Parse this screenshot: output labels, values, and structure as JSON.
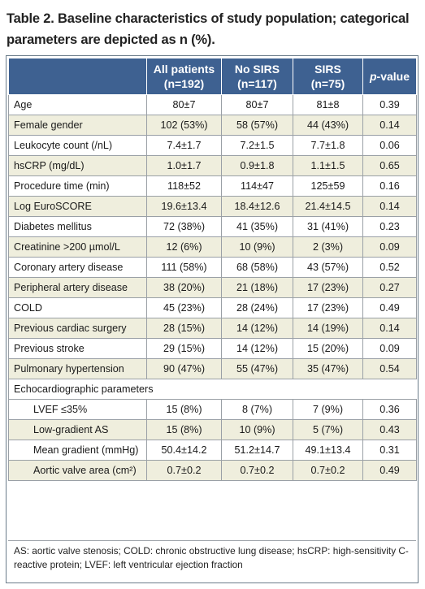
{
  "caption": "Table 2. Baseline characteristics of study population; categorical parameters are depicted as n (%).",
  "columns": {
    "all_line1": "All patients",
    "all_line2": "(n=192)",
    "nosirs_line1": "No SIRS",
    "nosirs_line2": "(n=117)",
    "sirs_line1": "SIRS",
    "sirs_line2": "(n=75)",
    "p_italic": "p",
    "p_rest": "-value"
  },
  "rows": [
    {
      "label": "Age",
      "all": "80±7",
      "nosirs": "80±7",
      "sirs": "81±8",
      "p": "0.39"
    },
    {
      "label": "Female gender",
      "all": "102 (53%)",
      "nosirs": "58 (57%)",
      "sirs": "44 (43%)",
      "p": "0.14"
    },
    {
      "label": "Leukocyte count (/nL)",
      "all": "7.4±1.7",
      "nosirs": "7.2±1.5",
      "sirs": "7.7±1.8",
      "p": "0.06"
    },
    {
      "label": "hsCRP (mg/dL)",
      "all": "1.0±1.7",
      "nosirs": "0.9±1.8",
      "sirs": "1.1±1.5",
      "p": "0.65"
    },
    {
      "label": "Procedure time (min)",
      "all": "118±52",
      "nosirs": "114±47",
      "sirs": "125±59",
      "p": "0.16"
    },
    {
      "label": "Log EuroSCORE",
      "all": "19.6±13.4",
      "nosirs": "18.4±12.6",
      "sirs": "21.4±14.5",
      "p": "0.14"
    },
    {
      "label": "Diabetes mellitus",
      "all": "72 (38%)",
      "nosirs": "41 (35%)",
      "sirs": "31 (41%)",
      "p": "0.23"
    },
    {
      "label": "Creatinine >200 µmol/L",
      "all": "12 (6%)",
      "nosirs": "10 (9%)",
      "sirs": "2 (3%)",
      "p": "0.09"
    },
    {
      "label": "Coronary artery disease",
      "all": "111 (58%)",
      "nosirs": "68 (58%)",
      "sirs": "43 (57%)",
      "p": "0.52"
    },
    {
      "label": "Peripheral artery disease",
      "all": "38 (20%)",
      "nosirs": "21 (18%)",
      "sirs": "17 (23%)",
      "p": "0.27"
    },
    {
      "label": "COLD",
      "all": "45 (23%)",
      "nosirs": "28 (24%)",
      "sirs": "17 (23%)",
      "p": "0.49"
    },
    {
      "label": "Previous cardiac surgery",
      "all": "28 (15%)",
      "nosirs": "14 (12%)",
      "sirs": "14 (19%)",
      "p": "0.14"
    },
    {
      "label": "Previous stroke",
      "all": "29 (15%)",
      "nosirs": "14 (12%)",
      "sirs": "15 (20%)",
      "p": "0.09"
    },
    {
      "label": "Pulmonary hypertension",
      "all": "90 (47%)",
      "nosirs": "55 (47%)",
      "sirs": "35 (47%)",
      "p": "0.54"
    }
  ],
  "section_label": "Echocardiographic parameters",
  "subrows": [
    {
      "label": "LVEF ≤35%",
      "all": "15 (8%)",
      "nosirs": "8 (7%)",
      "sirs": "7 (9%)",
      "p": "0.36"
    },
    {
      "label": "Low-gradient AS",
      "all": "15 (8%)",
      "nosirs": "10 (9%)",
      "sirs": "5 (7%)",
      "p": "0.43"
    },
    {
      "label": "Mean gradient (mmHg)",
      "all": "50.4±14.2",
      "nosirs": "51.2±14.7",
      "sirs": "49.1±13.4",
      "p": "0.31"
    },
    {
      "label": "Aortic valve area (cm²)",
      "all": "0.7±0.2",
      "nosirs": "0.7±0.2",
      "sirs": "0.7±0.2",
      "p": "0.49"
    }
  ],
  "footnote": "AS: aortic valve stenosis; COLD: chronic obstructive lung disease; hsCRP: high-sensitivity C-reactive protein; LVEF: left ventricular ejection fraction",
  "colors": {
    "header_bg": "#3e6191",
    "shade_bg": "#efeedd",
    "border": "#9aa0a6"
  }
}
